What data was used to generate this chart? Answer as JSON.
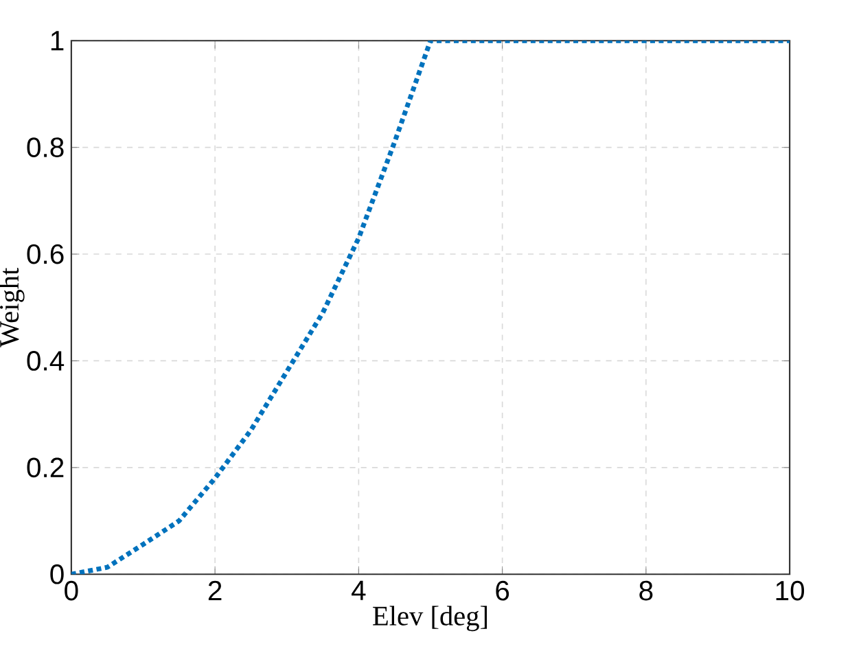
{
  "chart_data": {
    "type": "line",
    "xlabel": "Elev [deg]",
    "ylabel": "Weight",
    "x": [
      0,
      0.5,
      1,
      1.5,
      2,
      2.5,
      3,
      3.5,
      4,
      4.5,
      5,
      10
    ],
    "series": [
      {
        "color": "#0072bd",
        "values": [
          0,
          0.013,
          0.056,
          0.1,
          0.18,
          0.27,
          0.38,
          0.49,
          0.63,
          0.81,
          1,
          1
        ]
      }
    ],
    "xlim": [
      0,
      10
    ],
    "ylim": [
      0,
      1
    ],
    "xticks": [
      0,
      2,
      4,
      6,
      8,
      10
    ],
    "yticks": [
      0,
      0.2,
      0.4,
      0.6,
      0.8,
      1
    ],
    "grid": true,
    "line_style": "dotted",
    "marker": "none"
  }
}
